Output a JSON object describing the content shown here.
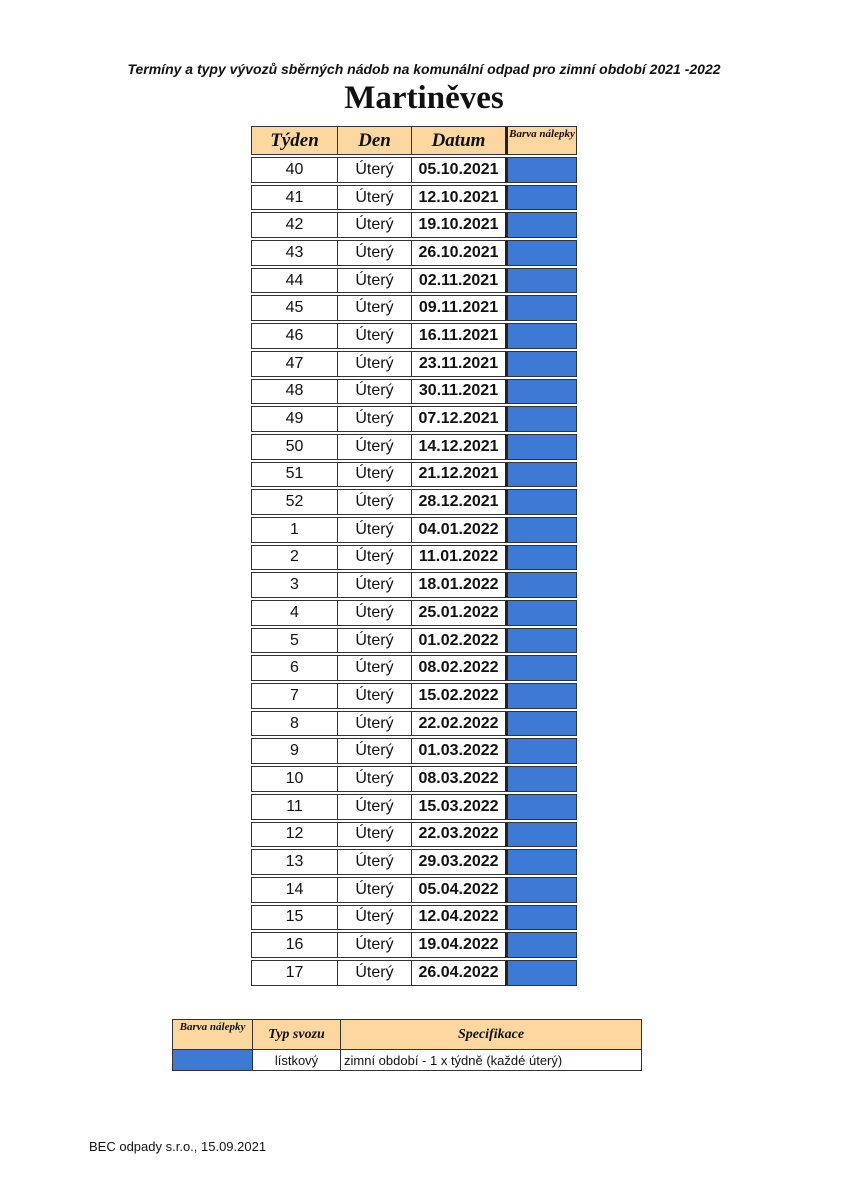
{
  "subtitle": "Termíny a typy vývozů sběrných nádob na komunální odpad pro zimní období 2021 -2022",
  "title": "Martiněves",
  "schedule": {
    "headers": [
      "Týden",
      "Den",
      "Datum",
      "Barva nálepky"
    ],
    "sticker_color": "#3d7ad6",
    "rows": [
      [
        "40",
        "Úterý",
        "05.10.2021"
      ],
      [
        "41",
        "Úterý",
        "12.10.2021"
      ],
      [
        "42",
        "Úterý",
        "19.10.2021"
      ],
      [
        "43",
        "Úterý",
        "26.10.2021"
      ],
      [
        "44",
        "Úterý",
        "02.11.2021"
      ],
      [
        "45",
        "Úterý",
        "09.11.2021"
      ],
      [
        "46",
        "Úterý",
        "16.11.2021"
      ],
      [
        "47",
        "Úterý",
        "23.11.2021"
      ],
      [
        "48",
        "Úterý",
        "30.11.2021"
      ],
      [
        "49",
        "Úterý",
        "07.12.2021"
      ],
      [
        "50",
        "Úterý",
        "14.12.2021"
      ],
      [
        "51",
        "Úterý",
        "21.12.2021"
      ],
      [
        "52",
        "Úterý",
        "28.12.2021"
      ],
      [
        "1",
        "Úterý",
        "04.01.2022"
      ],
      [
        "2",
        "Úterý",
        "11.01.2022"
      ],
      [
        "3",
        "Úterý",
        "18.01.2022"
      ],
      [
        "4",
        "Úterý",
        "25.01.2022"
      ],
      [
        "5",
        "Úterý",
        "01.02.2022"
      ],
      [
        "6",
        "Úterý",
        "08.02.2022"
      ],
      [
        "7",
        "Úterý",
        "15.02.2022"
      ],
      [
        "8",
        "Úterý",
        "22.02.2022"
      ],
      [
        "9",
        "Úterý",
        "01.03.2022"
      ],
      [
        "10",
        "Úterý",
        "08.03.2022"
      ],
      [
        "11",
        "Úterý",
        "15.03.2022"
      ],
      [
        "12",
        "Úterý",
        "22.03.2022"
      ],
      [
        "13",
        "Úterý",
        "29.03.2022"
      ],
      [
        "14",
        "Úterý",
        "05.04.2022"
      ],
      [
        "15",
        "Úterý",
        "12.04.2022"
      ],
      [
        "16",
        "Úterý",
        "19.04.2022"
      ],
      [
        "17",
        "Úterý",
        "26.04.2022"
      ]
    ]
  },
  "legend": {
    "headers": [
      "Barva nálepky",
      "Typ svozu",
      "Specifikace"
    ],
    "row": {
      "type": "lístkový",
      "spec": "zimní období - 1 x týdně (každé úterý)"
    }
  },
  "footer": "BEC odpady s.r.o., 15.09.2021"
}
